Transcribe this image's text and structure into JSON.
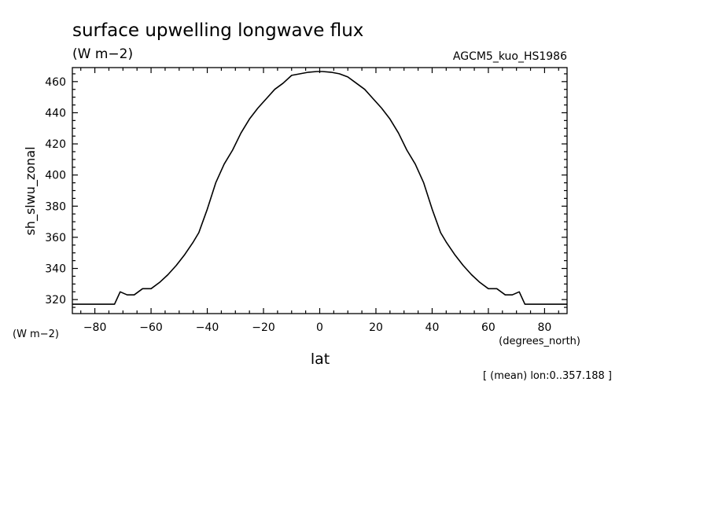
{
  "title": "surface upwelling longwave flux",
  "units": "(W m−2)",
  "model": "AGCM5_kuo_HS1986",
  "y_units_corner": "(W m−2)",
  "x_units": "(degrees_north)",
  "averaging_note": "[ (mean) lon:0..357.188 ]",
  "chart_data": {
    "type": "line",
    "title": "surface upwelling longwave flux",
    "xlabel": "lat",
    "ylabel": "sh_slwu_zonal",
    "xlim": [
      -88,
      88
    ],
    "ylim": [
      311,
      469
    ],
    "xticks": [
      -80,
      -60,
      -40,
      -20,
      0,
      20,
      40,
      60,
      80
    ],
    "xtick_labels": [
      "−80",
      "−60",
      "−40",
      "−20",
      "0",
      "20",
      "40",
      "60",
      "80"
    ],
    "yticks": [
      320,
      340,
      360,
      380,
      400,
      420,
      440,
      460
    ],
    "ytick_labels": [
      "320",
      "340",
      "360",
      "380",
      "400",
      "420",
      "440",
      "460"
    ],
    "series": [
      {
        "name": "sh_slwu_zonal",
        "color": "#000000",
        "x": [
          -88,
          -73,
          -71,
          -68.5,
          -66,
          -63,
          -60,
          -57,
          -54,
          -51,
          -48,
          -45,
          -43,
          -40,
          -37,
          -34,
          -31,
          -28,
          -25,
          -22,
          -19,
          -16,
          -13,
          -10,
          -7,
          -4,
          -1,
          0,
          1,
          4,
          7,
          10,
          13,
          16,
          19,
          22,
          25,
          28,
          31,
          34,
          37,
          40,
          43,
          45,
          48,
          51,
          54,
          57,
          60,
          63,
          66,
          68.5,
          71,
          73,
          88
        ],
        "y": [
          317,
          317,
          325,
          323,
          323,
          327,
          327,
          331,
          336,
          342,
          349,
          357,
          363,
          378,
          395,
          407,
          416,
          427,
          436,
          443,
          449,
          455,
          459,
          464,
          465,
          466,
          466.5,
          466.5,
          466.5,
          466,
          465,
          463,
          459,
          455,
          449,
          443,
          436,
          427,
          416,
          407,
          395,
          378,
          363,
          357,
          349,
          342,
          336,
          331,
          327,
          327,
          323,
          323,
          325,
          317,
          317
        ]
      }
    ]
  }
}
